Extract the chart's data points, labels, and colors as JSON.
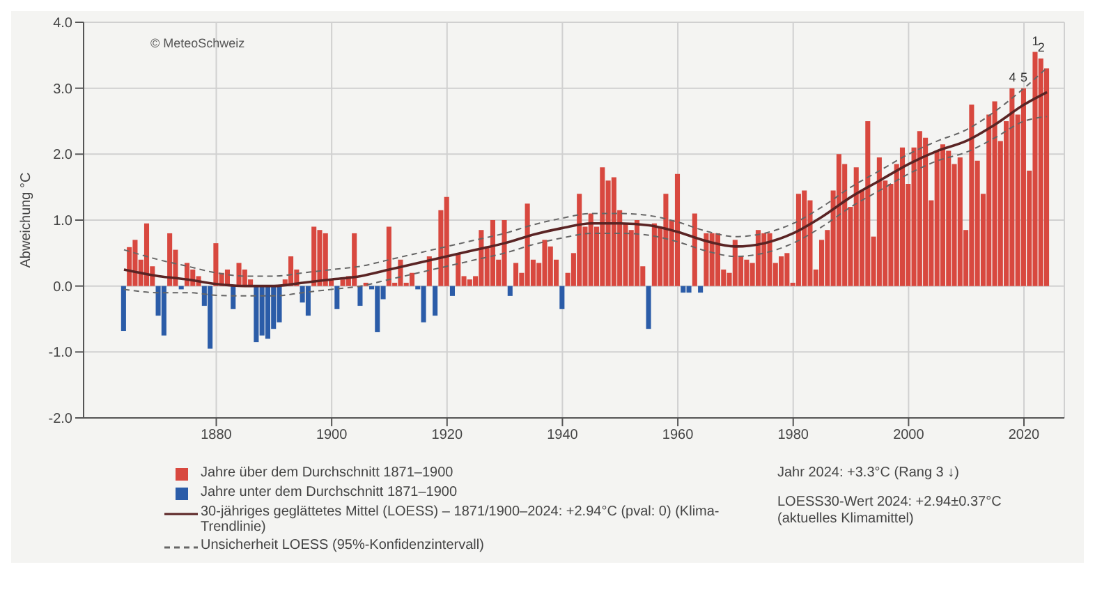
{
  "chart_data": {
    "type": "bar",
    "stacked": true,
    "ylabel": "Abweichung °C",
    "x": [
      1865,
      1866,
      1867,
      1868,
      1869,
      1870,
      1871,
      1872,
      1873,
      1874,
      1875,
      1876,
      1877,
      1878,
      1879,
      1880,
      1881,
      1882,
      1883,
      1884,
      1885,
      1886,
      1887,
      1888,
      1889,
      1890,
      1891,
      1892,
      1893,
      1894,
      1895,
      1896,
      1897,
      1898,
      1899,
      1900,
      1901,
      1902,
      1903,
      1904,
      1905,
      1906,
      1907,
      1908,
      1909,
      1910,
      1911,
      1912,
      1913,
      1914,
      1915,
      1916,
      1917,
      1918,
      1919,
      1920,
      1921,
      1922,
      1923,
      1924,
      1925,
      1926,
      1927,
      1928,
      1929,
      1930,
      1931,
      1932,
      1933,
      1934,
      1935,
      1936,
      1937,
      1938,
      1939,
      1940,
      1941,
      1942,
      1943,
      1944,
      1945,
      1946,
      1947,
      1948,
      1949,
      1950,
      1951,
      1952,
      1953,
      1954,
      1955,
      1956,
      1957,
      1958,
      1959,
      1960,
      1961,
      1962,
      1963,
      1964,
      1965,
      1966,
      1967,
      1968,
      1969,
      1970,
      1971,
      1972,
      1973,
      1974,
      1975,
      1976,
      1977,
      1978,
      1979,
      1980,
      1981,
      1982,
      1983,
      1984,
      1985,
      1986,
      1987,
      1988,
      1989,
      1990,
      1991,
      1992,
      1993,
      1994,
      1995,
      1996,
      1997,
      1998,
      1999,
      2000,
      2001,
      2002,
      2003,
      2004,
      2005,
      2006,
      2007,
      2008,
      2009,
      2010,
      2011,
      2012,
      2013,
      2014,
      2015,
      2016,
      2017,
      2018,
      2019,
      2020,
      2021,
      2022,
      2023,
      2024
    ],
    "series": [
      {
        "name": "Jahre über dem Durchschnitt 1871–1900",
        "color": "#d8483f",
        "values": [
          0.59,
          0.7,
          0.4,
          0.95,
          0.3,
          null,
          null,
          0.8,
          0.55,
          null,
          0.35,
          0.25,
          0.15,
          null,
          null,
          0.65,
          0.2,
          0.25,
          null,
          0.35,
          0.25,
          0.1,
          null,
          null,
          null,
          null,
          null,
          0.1,
          0.45,
          0.25,
          null,
          null,
          0.9,
          0.85,
          0.8,
          0.1,
          null,
          0.1,
          0.15,
          0.8,
          null,
          0.05,
          null,
          null,
          null,
          0.9,
          0.05,
          0.4,
          0.05,
          0.2,
          null,
          null,
          0.45,
          null,
          1.15,
          1.35,
          null,
          0.5,
          0.15,
          0.1,
          0.15,
          0.85,
          0.6,
          1.0,
          0.4,
          1.0,
          null,
          0.35,
          0.2,
          1.25,
          0.4,
          0.35,
          0.7,
          0.6,
          0.4,
          null,
          0.2,
          0.5,
          1.4,
          0.9,
          1.1,
          0.9,
          1.8,
          1.6,
          1.65,
          1.15,
          0.95,
          0.85,
          1.0,
          0.3,
          null,
          0.95,
          0.9,
          1.4,
          1.0,
          1.7,
          null,
          null,
          1.1,
          null,
          0.8,
          0.8,
          0.8,
          0.25,
          0.2,
          0.7,
          0.45,
          0.4,
          0.35,
          0.85,
          0.8,
          0.8,
          0.35,
          0.45,
          0.5,
          0.05,
          1.4,
          1.45,
          1.3,
          0.25,
          0.7,
          0.85,
          1.45,
          2.0,
          1.85,
          1.2,
          1.8,
          1.45,
          2.5,
          0.75,
          1.95,
          1.6,
          1.55,
          1.85,
          2.1,
          1.55,
          2.1,
          2.35,
          2.25,
          1.3,
          2.05,
          2.15,
          2.05,
          1.85,
          1.95,
          0.85,
          2.75,
          1.9,
          1.4,
          2.6,
          2.8,
          2.2,
          2.5,
          3.0,
          2.6,
          3.0,
          1.75,
          3.55,
          3.45,
          3.3
        ]
      },
      {
        "name": "Jahre unter dem Durchschnitt 1871–1900",
        "color": "#2b5ca8",
        "x": [
          1864,
          1870,
          1871,
          1874,
          1878,
          1879,
          1883,
          1887,
          1888,
          1889,
          1890,
          1891,
          1895,
          1896,
          1901,
          1905,
          1907,
          1908,
          1909,
          1915,
          1916,
          1918,
          1921,
          1931,
          1940,
          1955,
          1961,
          1962,
          1964
        ],
        "values": [
          -0.68,
          -0.45,
          -0.75,
          -0.05,
          -0.3,
          -0.95,
          -0.35,
          -0.85,
          -0.75,
          -0.8,
          -0.65,
          -0.55,
          -0.25,
          -0.45,
          -0.35,
          -0.3,
          -0.05,
          -0.7,
          -0.2,
          -0.05,
          -0.55,
          -0.45,
          -0.15,
          -0.15,
          -0.35,
          -0.65,
          -0.1,
          -0.1,
          -0.1
        ]
      },
      {
        "name": "30-jähriges geglättetes Mittel (LOESS) – 1871/1900–2024: +2.94°C (pval: 0) (Klima-Trendlinie)",
        "type": "line",
        "color": "#5a2424",
        "line_style": "solid",
        "x": [
          1864,
          1870,
          1875,
          1880,
          1885,
          1890,
          1895,
          1900,
          1905,
          1910,
          1915,
          1920,
          1925,
          1930,
          1935,
          1940,
          1945,
          1950,
          1955,
          1960,
          1965,
          1970,
          1975,
          1980,
          1985,
          1990,
          1995,
          2000,
          2005,
          2010,
          2015,
          2020,
          2024
        ],
        "values": [
          0.25,
          0.15,
          0.1,
          0.03,
          0.0,
          0.0,
          0.05,
          0.1,
          0.15,
          0.25,
          0.35,
          0.45,
          0.55,
          0.65,
          0.78,
          0.88,
          0.95,
          0.95,
          0.92,
          0.82,
          0.68,
          0.6,
          0.65,
          0.8,
          1.05,
          1.35,
          1.6,
          1.85,
          2.05,
          2.2,
          2.45,
          2.75,
          2.94
        ]
      },
      {
        "name": "Unsicherheit LOESS (95%-Konfidenzintervall)",
        "type": "line",
        "color": "#666666",
        "line_style": "dashed",
        "x": [
          1864,
          1870,
          1875,
          1880,
          1885,
          1890,
          1895,
          1900,
          1905,
          1910,
          1915,
          1920,
          1925,
          1930,
          1935,
          1940,
          1945,
          1950,
          1955,
          1960,
          1965,
          1970,
          1975,
          1980,
          1985,
          1990,
          1995,
          2000,
          2005,
          2010,
          2015,
          2020,
          2024
        ],
        "values": [
          0.55,
          0.4,
          0.3,
          0.2,
          0.15,
          0.15,
          0.2,
          0.25,
          0.3,
          0.4,
          0.5,
          0.6,
          0.7,
          0.8,
          0.93,
          1.03,
          1.1,
          1.1,
          1.07,
          0.97,
          0.83,
          0.75,
          0.8,
          0.95,
          1.2,
          1.5,
          1.75,
          2.0,
          2.2,
          2.37,
          2.65,
          3.0,
          3.31
        ]
      },
      {
        "type": "line",
        "color": "#666666",
        "line_style": "dashed",
        "x": [
          1864,
          1870,
          1875,
          1880,
          1885,
          1890,
          1895,
          1900,
          1905,
          1910,
          1915,
          1920,
          1925,
          1930,
          1935,
          1940,
          1945,
          1950,
          1955,
          1960,
          1965,
          1970,
          1975,
          1980,
          1985,
          1990,
          1995,
          2000,
          2005,
          2010,
          2015,
          2020,
          2024
        ],
        "values": [
          -0.05,
          -0.1,
          -0.1,
          -0.14,
          -0.15,
          -0.15,
          -0.1,
          -0.05,
          0.0,
          0.1,
          0.2,
          0.3,
          0.4,
          0.5,
          0.63,
          0.73,
          0.8,
          0.8,
          0.77,
          0.67,
          0.53,
          0.45,
          0.5,
          0.65,
          0.9,
          1.2,
          1.45,
          1.7,
          1.9,
          2.03,
          2.25,
          2.5,
          2.57
        ]
      }
    ],
    "xlim": [
      1857,
      2027
    ],
    "xticks": [
      1880,
      1900,
      1920,
      1940,
      1960,
      1980,
      2000,
      2020
    ],
    "ylim": [
      -2,
      4
    ],
    "yticks": [
      {
        "value": -2,
        "label": "-2.0"
      },
      {
        "value": -1,
        "label": "-1.0"
      },
      {
        "value": 0,
        "label": "0.0"
      },
      {
        "value": 1,
        "label": "1.0"
      },
      {
        "value": 2,
        "label": "2.0"
      },
      {
        "value": 3,
        "label": "3.0"
      },
      {
        "value": 4,
        "label": "4.0"
      }
    ],
    "grid": true,
    "legend": "bottom",
    "annotations": [
      "© MeteoSchweiz",
      "Jahr 2024: +3.3°C (Rang 3 ↓)",
      "LOESS30-Wert 2024: +2.94±0.37°C",
      "(aktuelles Klimamittel)",
      {
        "text": "1",
        "x": 2022,
        "y": 3.55
      },
      {
        "text": "2",
        "x": 2023,
        "y": 3.45
      },
      {
        "text": "4",
        "x": 2018,
        "y": 3.0
      },
      {
        "text": "5",
        "x": 2020,
        "y": 3.0
      }
    ]
  }
}
